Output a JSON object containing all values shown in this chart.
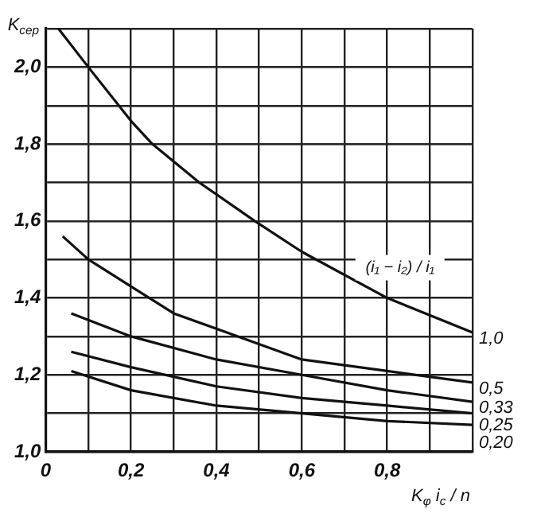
{
  "chart_data": {
    "type": "line",
    "ylabel": "K$_{сер}$",
    "xlabel": "K$_{φ}$ i$_{c}$ / n",
    "legend_title": "(i₁ − i₂) / i₁",
    "xlim": [
      0,
      1.0
    ],
    "ylim": [
      1.0,
      2.1
    ],
    "xticks": [
      0,
      {
        "value": 0.1,
        "label": null
      },
      {
        "value": 0.2,
        "label": "0,2"
      },
      {
        "value": 0.3,
        "label": null
      },
      {
        "value": 0.4,
        "label": "0,4"
      },
      {
        "value": 0.5,
        "label": null
      },
      {
        "value": 0.6,
        "label": "0,6"
      },
      {
        "value": 0.7,
        "label": null
      },
      {
        "value": 0.8,
        "label": "0,8"
      },
      {
        "value": 0.9,
        "label": null
      },
      {
        "value": 1.0,
        "label": null
      }
    ],
    "yticks": [
      {
        "value": 1.0,
        "label": "1,0"
      },
      {
        "value": 1.1,
        "label": null
      },
      {
        "value": 1.2,
        "label": "1,2"
      },
      {
        "value": 1.3,
        "label": null
      },
      {
        "value": 1.4,
        "label": "1,4"
      },
      {
        "value": 1.5,
        "label": null
      },
      {
        "value": 1.6,
        "label": "1,6"
      },
      {
        "value": 1.7,
        "label": null
      },
      {
        "value": 1.8,
        "label": "1,8"
      },
      {
        "value": 1.9,
        "label": null
      },
      {
        "value": 2.0,
        "label": "2,0"
      },
      {
        "value": 2.1,
        "label": null
      }
    ],
    "grid": true,
    "legend": "right",
    "marker": "none",
    "line_style": "solid",
    "series": [
      {
        "name": "1,0",
        "color": "#111111",
        "x": [
          0.03,
          0.1,
          0.2,
          0.25,
          0.36,
          0.49,
          0.6,
          0.8,
          1.0
        ],
        "values": [
          2.1,
          2.0,
          1.86,
          1.8,
          1.7,
          1.6,
          1.52,
          1.4,
          1.31
        ]
      },
      {
        "name": "0,5",
        "color": "#111111",
        "x": [
          0.04,
          0.1,
          0.2,
          0.3,
          0.4,
          0.6,
          0.8,
          1.0
        ],
        "values": [
          1.56,
          1.5,
          1.43,
          1.36,
          1.32,
          1.24,
          1.21,
          1.18
        ]
      },
      {
        "name": "0,33",
        "color": "#111111",
        "x": [
          0.06,
          0.2,
          0.4,
          0.6,
          0.8,
          1.0
        ],
        "values": [
          1.36,
          1.3,
          1.24,
          1.2,
          1.16,
          1.13
        ]
      },
      {
        "name": "0,25",
        "color": "#111111",
        "x": [
          0.06,
          0.2,
          0.4,
          0.6,
          0.8,
          1.0
        ],
        "values": [
          1.26,
          1.22,
          1.17,
          1.14,
          1.12,
          1.1
        ]
      },
      {
        "name": "0,20",
        "color": "#111111",
        "x": [
          0.06,
          0.2,
          0.4,
          0.6,
          0.8,
          1.0
        ],
        "values": [
          1.21,
          1.16,
          1.12,
          1.1,
          1.08,
          1.07
        ]
      }
    ]
  }
}
